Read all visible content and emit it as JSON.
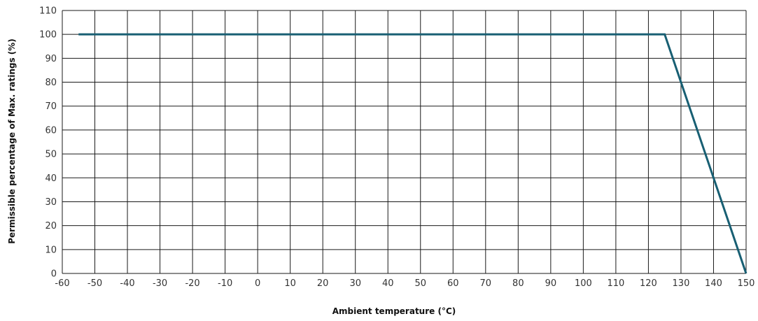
{
  "chart_data": {
    "type": "line",
    "title": "",
    "xlabel": "Ambient temperature (°C)",
    "ylabel": "Permissible percentage of Max. ratings (%)",
    "xlim": [
      -60,
      150
    ],
    "ylim": [
      0,
      110
    ],
    "grid": true,
    "x_ticks": [
      -60,
      -50,
      -40,
      -30,
      -20,
      -10,
      0,
      10,
      20,
      30,
      40,
      50,
      60,
      70,
      80,
      90,
      100,
      110,
      120,
      130,
      140,
      150
    ],
    "y_ticks": [
      0,
      10,
      20,
      30,
      40,
      50,
      60,
      70,
      80,
      90,
      100,
      110
    ],
    "series": [
      {
        "color": "#185f73",
        "x": [
          -55,
          125,
          150
        ],
        "y": [
          100,
          100,
          0
        ]
      }
    ]
  }
}
